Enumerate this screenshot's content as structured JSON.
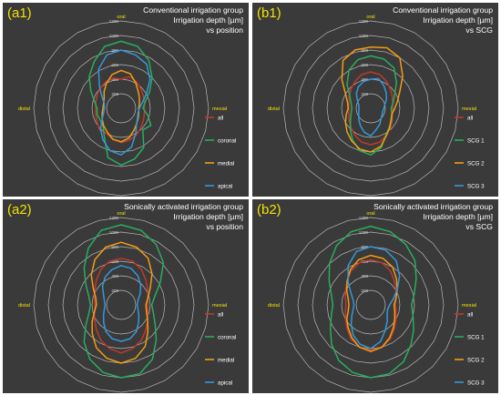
{
  "figure": {
    "panels": [
      "a1",
      "b1",
      "a2",
      "b2"
    ],
    "colors": {
      "background": "#3a3a3a",
      "grid": "#b8b8b8",
      "direction_text": "#f2e200",
      "tick_text": "#d8d8d8"
    }
  },
  "chart_data": [
    {
      "id": "a1",
      "type": "radar",
      "panel_label": "(a1)",
      "title": [
        "Conventional irrigation group",
        "Irrigation depth [µm]",
        "vs position"
      ],
      "axis_labels": {
        "top": "oral",
        "right": "mesial",
        "bottom": "vestib.",
        "left": "distal"
      },
      "radial_ticks": [
        200,
        400,
        600,
        800,
        1000,
        1200
      ],
      "rlim": [
        0,
        1200
      ],
      "grid": true,
      "legend_placement": "right",
      "series": [
        {
          "name": "all",
          "color": "#c0392b",
          "values": [
            400,
            450,
            420,
            380,
            350,
            330,
            320,
            330,
            350,
            380,
            420,
            450,
            470,
            440,
            400,
            420,
            380,
            360,
            350,
            360,
            380,
            400,
            420,
            430
          ]
        },
        {
          "name": "coronal",
          "color": "#27ae60",
          "values": [
            920,
            880,
            760,
            600,
            450,
            340,
            300,
            380,
            470,
            420,
            620,
            720,
            780,
            700,
            460,
            350,
            330,
            340,
            330,
            380,
            480,
            620,
            740,
            880
          ]
        },
        {
          "name": "medial",
          "color": "#f39c12",
          "values": [
            520,
            490,
            400,
            330,
            290,
            260,
            240,
            250,
            270,
            300,
            350,
            420,
            460,
            440,
            380,
            340,
            300,
            270,
            250,
            250,
            270,
            330,
            400,
            480
          ]
        },
        {
          "name": "apical",
          "color": "#3498db",
          "values": [
            800,
            760,
            700,
            560,
            400,
            300,
            250,
            240,
            260,
            300,
            400,
            550,
            640,
            600,
            500,
            400,
            300,
            250,
            230,
            240,
            300,
            420,
            620,
            760
          ]
        }
      ]
    },
    {
      "id": "b1",
      "type": "radar",
      "panel_label": "(b1)",
      "title": [
        "Conventional irrigation group",
        "Irrigation depth [µm]",
        "vs SCG"
      ],
      "axis_labels": {
        "top": "oral",
        "right": "mesial",
        "bottom": "vestib.",
        "left": "distal"
      },
      "radial_ticks": [
        200,
        400,
        600,
        800,
        1000,
        1200
      ],
      "rlim": [
        0,
        1200
      ],
      "grid": true,
      "legend_placement": "right",
      "series": [
        {
          "name": "all",
          "color": "#c0392b",
          "values": [
            500,
            480,
            430,
            380,
            340,
            310,
            300,
            310,
            340,
            380,
            430,
            480,
            500,
            480,
            430,
            380,
            340,
            310,
            300,
            310,
            340,
            380,
            430,
            480
          ]
        },
        {
          "name": "SCG 1",
          "color": "#27ae60",
          "values": [
            720,
            700,
            640,
            500,
            380,
            320,
            280,
            300,
            330,
            360,
            420,
            560,
            640,
            600,
            500,
            400,
            320,
            280,
            260,
            280,
            330,
            460,
            600,
            690
          ]
        },
        {
          "name": "SCG 2",
          "color": "#f39c12",
          "values": [
            840,
            860,
            800,
            620,
            460,
            380,
            330,
            300,
            320,
            370,
            430,
            540,
            600,
            580,
            520,
            460,
            400,
            350,
            310,
            330,
            400,
            560,
            760,
            830
          ]
        },
        {
          "name": "SCG 3",
          "color": "#3498db",
          "values": [
            400,
            420,
            360,
            300,
            250,
            200,
            180,
            170,
            180,
            200,
            250,
            300,
            380,
            340,
            280,
            230,
            190,
            170,
            160,
            170,
            210,
            280,
            340,
            380
          ]
        }
      ]
    },
    {
      "id": "a2",
      "type": "radar",
      "panel_label": "(a2)",
      "title": [
        "Sonically activated irrigation group",
        "Irrigation depth [µm]",
        "vs position"
      ],
      "axis_labels": {
        "top": "oral",
        "right": "mesial",
        "bottom": "vestib.",
        "left": "distal"
      },
      "radial_ticks": [
        200,
        400,
        600,
        800,
        1000,
        1200
      ],
      "rlim": [
        0,
        1200
      ],
      "grid": true,
      "legend_placement": "right",
      "series": [
        {
          "name": "all",
          "color": "#c0392b",
          "values": [
            640,
            620,
            560,
            480,
            420,
            380,
            360,
            380,
            420,
            480,
            560,
            620,
            660,
            620,
            560,
            480,
            420,
            380,
            360,
            380,
            420,
            480,
            560,
            620
          ]
        },
        {
          "name": "coronal",
          "color": "#27ae60",
          "values": [
            1100,
            1060,
            960,
            820,
            620,
            480,
            420,
            460,
            540,
            680,
            860,
            980,
            1000,
            960,
            860,
            720,
            560,
            460,
            420,
            460,
            560,
            720,
            900,
            1060
          ]
        },
        {
          "name": "medial",
          "color": "#f39c12",
          "values": [
            860,
            820,
            740,
            600,
            460,
            380,
            340,
            360,
            420,
            520,
            660,
            760,
            800,
            760,
            680,
            560,
            460,
            380,
            340,
            360,
            440,
            580,
            720,
            820
          ]
        },
        {
          "name": "apical",
          "color": "#3498db",
          "values": [
            540,
            520,
            460,
            380,
            300,
            240,
            220,
            240,
            280,
            340,
            420,
            480,
            500,
            480,
            420,
            340,
            280,
            240,
            220,
            240,
            280,
            360,
            440,
            500
          ]
        }
      ]
    },
    {
      "id": "b2",
      "type": "radar",
      "panel_label": "(b2)",
      "title": [
        "Sonically activated irrigation group",
        "Irrigation depth [µm]",
        "vs SCG"
      ],
      "axis_labels": {
        "top": "oral",
        "right": "mesial",
        "bottom": "vestib.",
        "left": "distal"
      },
      "radial_ticks": [
        200,
        400,
        600,
        800,
        1000,
        1200
      ],
      "rlim": [
        0,
        1200
      ],
      "grid": true,
      "legend_placement": "right",
      "series": [
        {
          "name": "all",
          "color": "#c0392b",
          "values": [
            620,
            600,
            540,
            460,
            400,
            360,
            340,
            360,
            400,
            460,
            540,
            600,
            620,
            600,
            540,
            460,
            400,
            360,
            340,
            360,
            400,
            460,
            540,
            600
          ]
        },
        {
          "name": "SCG 1",
          "color": "#27ae60",
          "values": [
            1080,
            1040,
            960,
            860,
            720,
            620,
            560,
            600,
            680,
            780,
            900,
            980,
            1000,
            960,
            880,
            760,
            640,
            560,
            520,
            560,
            660,
            800,
            940,
            1040
          ]
        },
        {
          "name": "SCG 2",
          "color": "#f39c12",
          "values": [
            680,
            660,
            600,
            500,
            420,
            360,
            320,
            340,
            380,
            440,
            520,
            600,
            640,
            600,
            520,
            440,
            380,
            320,
            300,
            320,
            380,
            460,
            560,
            640
          ]
        },
        {
          "name": "SCG 3",
          "color": "#3498db",
          "values": [
            800,
            780,
            700,
            560,
            420,
            320,
            260,
            240,
            260,
            320,
            400,
            520,
            600,
            560,
            480,
            380,
            300,
            250,
            230,
            250,
            310,
            440,
            620,
            760
          ]
        }
      ]
    }
  ]
}
